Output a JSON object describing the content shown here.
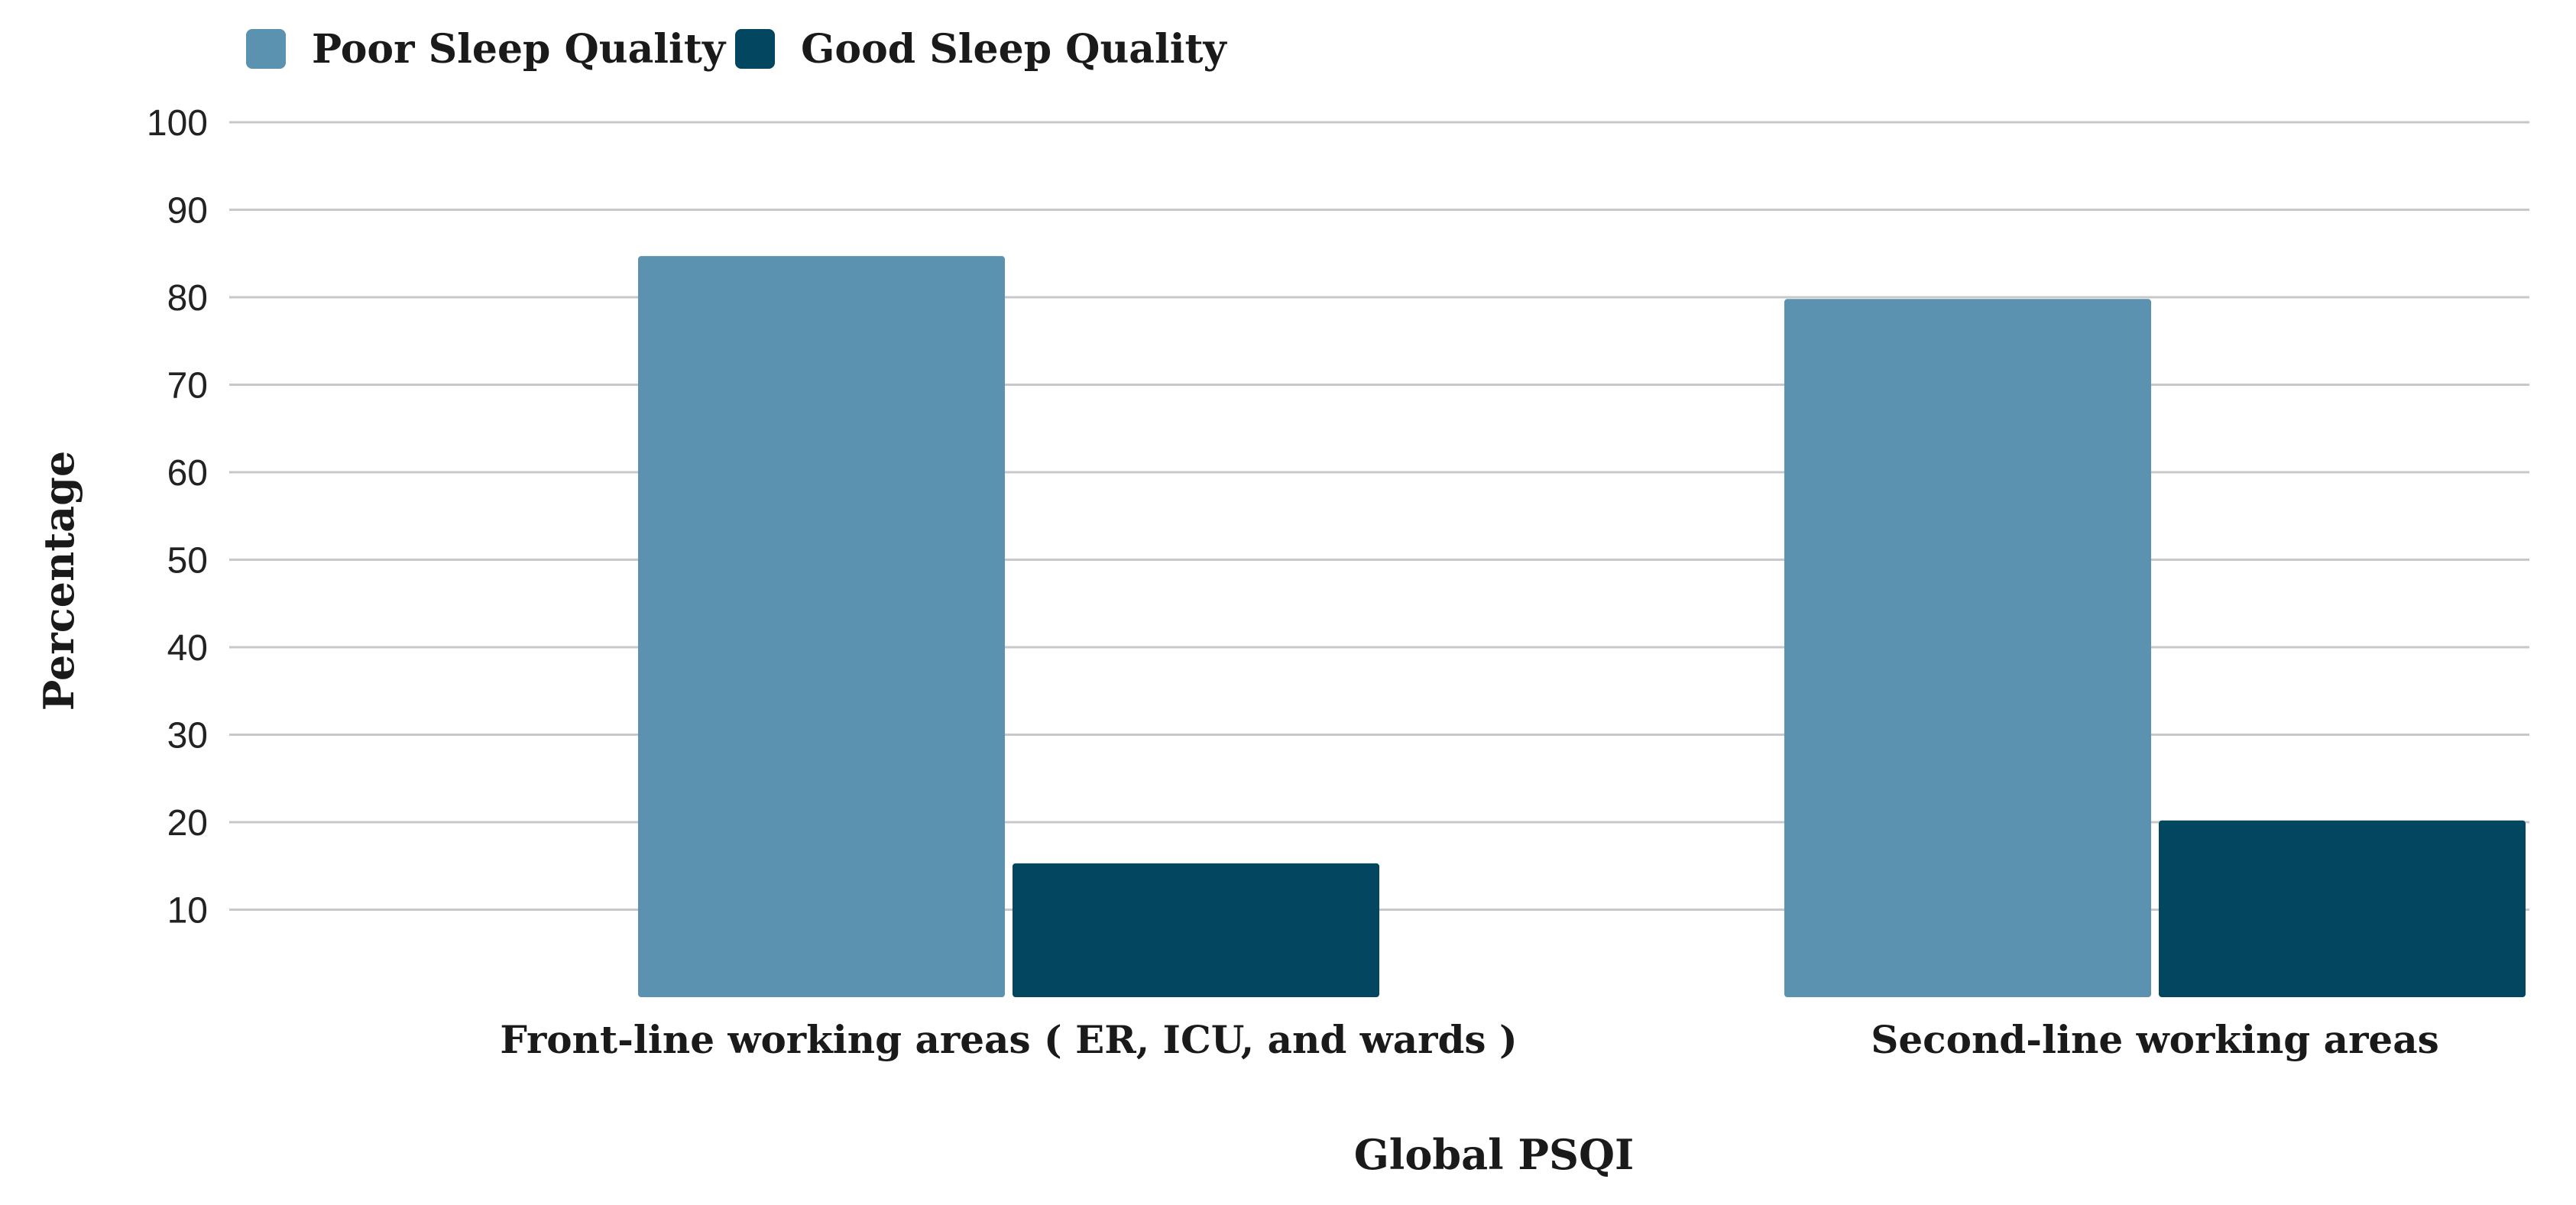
{
  "chart_data": {
    "type": "bar",
    "categories": [
      "Front-line working areas ( ER, ICU, and wards )",
      "Second-line working areas"
    ],
    "series": [
      {
        "name": "Poor Sleep Quality",
        "values": [
          84.7,
          79.8
        ],
        "color": "#5a92b0"
      },
      {
        "name": "Good Sleep Quality",
        "values": [
          15.3,
          20.2
        ],
        "color": "#02465f"
      }
    ],
    "xlabel": "Global PSQI",
    "ylabel": "Percentage",
    "ylim": [
      0,
      100
    ],
    "yticks": [
      10,
      20,
      30,
      40,
      50,
      60,
      70,
      80,
      90,
      100
    ],
    "grid": true,
    "legend_position": "top-left"
  }
}
